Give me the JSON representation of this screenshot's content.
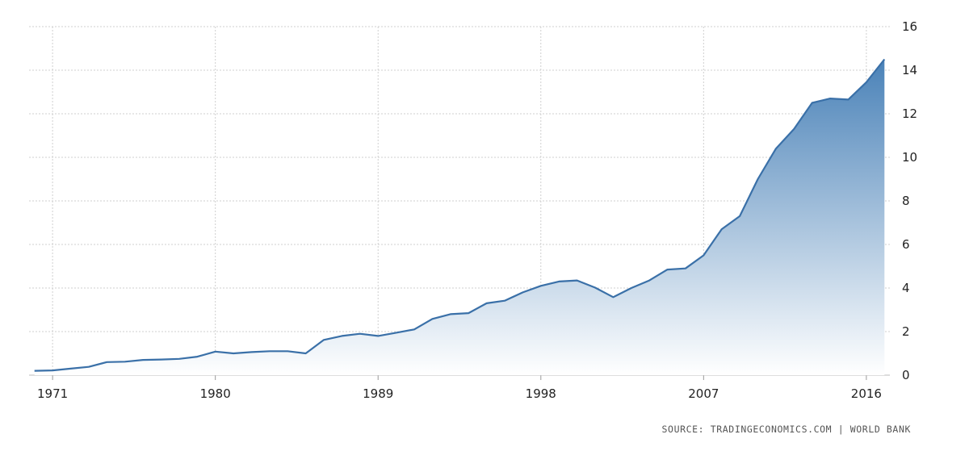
{
  "chart_data": {
    "type": "area",
    "title": "",
    "xlabel": "",
    "ylabel": "",
    "xlim": [
      1969.7,
      2017.3
    ],
    "ylim": [
      0,
      16
    ],
    "grid": true,
    "y_axis_side": "right",
    "x_ticks": [
      "1971",
      "1980",
      "1989",
      "1998",
      "2007",
      "2016"
    ],
    "y_ticks": [
      "0",
      "2",
      "4",
      "6",
      "8",
      "10",
      "12",
      "14",
      "16"
    ],
    "series": [
      {
        "x": [
          1970,
          1971,
          1972,
          1973,
          1974,
          1975,
          1976,
          1977,
          1978,
          1979,
          1980,
          1981,
          1982,
          1983,
          1984,
          1985,
          1986,
          1987,
          1988,
          1989,
          1990,
          1991,
          1992,
          1993,
          1994,
          1995,
          1996,
          1997,
          1998,
          1999,
          2000,
          2001,
          2002,
          2003,
          2004,
          2005,
          2006,
          2007,
          2008,
          2009,
          2010,
          2011,
          2012,
          2013,
          2014,
          2015,
          2016,
          2017
        ],
        "values": [
          0.2,
          0.22,
          0.3,
          0.38,
          0.6,
          0.62,
          0.7,
          0.72,
          0.75,
          0.85,
          1.08,
          1.0,
          1.06,
          1.1,
          1.1,
          1.0,
          1.62,
          1.8,
          1.9,
          1.8,
          1.95,
          2.1,
          2.58,
          2.8,
          2.85,
          3.3,
          3.42,
          3.8,
          4.1,
          4.3,
          4.35,
          4.02,
          3.58,
          4.0,
          4.35,
          4.85,
          4.9,
          5.5,
          6.7,
          7.3,
          9.0,
          10.4,
          11.3,
          12.5,
          12.7,
          12.65,
          13.45,
          14.5
        ]
      }
    ],
    "line_color": "#3a70a8",
    "fill_top_color": "#4a82b8",
    "fill_bottom_color": "#ffffff"
  },
  "source_text": "SOURCE: TRADINGECONOMICS.COM | WORLD BANK"
}
